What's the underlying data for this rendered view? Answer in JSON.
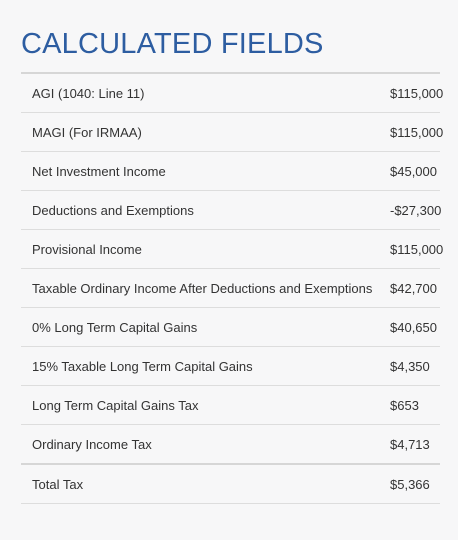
{
  "section": {
    "title": "CALCULATED FIELDS"
  },
  "rows": [
    {
      "label": "AGI (1040: Line 11)",
      "value": "$115,000"
    },
    {
      "label": "MAGI (For IRMAA)",
      "value": "$115,000"
    },
    {
      "label": "Net Investment Income",
      "value": "$45,000"
    },
    {
      "label": "Deductions and Exemptions",
      "value": "-$27,300"
    },
    {
      "label": "Provisional Income",
      "value": "$115,000"
    },
    {
      "label": "Taxable Ordinary Income After Deductions and Exemptions",
      "value": "$42,700"
    },
    {
      "label": "0% Long Term Capital Gains",
      "value": "$40,650"
    },
    {
      "label": "15% Taxable Long Term Capital Gains",
      "value": "$4,350"
    },
    {
      "label": "Long Term Capital Gains Tax",
      "value": "$653"
    },
    {
      "label": "Ordinary Income Tax",
      "value": "$4,713"
    },
    {
      "label": "Total Tax",
      "value": "$5,366"
    }
  ]
}
